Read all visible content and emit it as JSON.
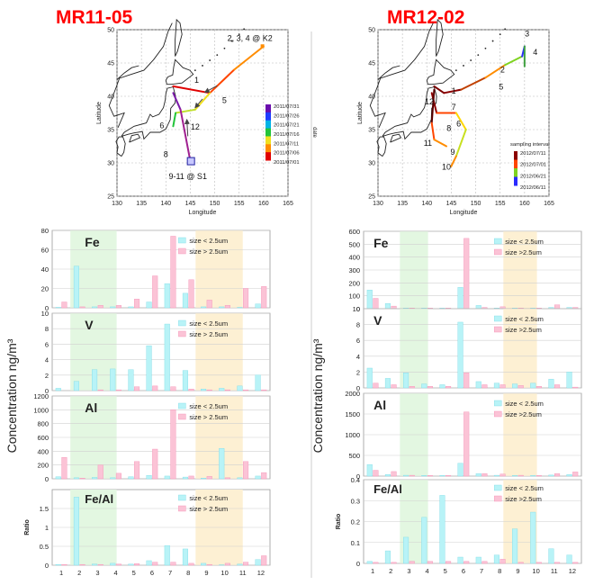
{
  "left_title": "MR11-05",
  "right_title": "MR12-02",
  "colors": {
    "fine": "#b8f3f7",
    "coarse": "#fbc3d6",
    "green_band": "#e3f7e1",
    "orange_band": "#fdf0d3",
    "fine_edge": "#7ddbe6",
    "coarse_edge": "#f58fb4"
  },
  "maps": {
    "lat_label": "Latitude",
    "lon_label": "Longitude",
    "lat_ticks": [
      25,
      30,
      35,
      40,
      45,
      50
    ],
    "lon_ticks": [
      130,
      135,
      140,
      145,
      150,
      155,
      160,
      165
    ],
    "left": {
      "legend_title": "date",
      "legend_entries": [
        "2011/07/31",
        "2011/07/26",
        "2011/07/21",
        "2011/07/16",
        "2011/07/11",
        "2011/07/06",
        "2011/07/01"
      ],
      "legend_colors": [
        "#6a0dad",
        "#1e3cff",
        "#00b3e6",
        "#22c43a",
        "#f0e020",
        "#ff8c00",
        "#e00000"
      ],
      "annotations": [
        "2, 3, 4 @ K2",
        "1",
        "5",
        "12",
        "6",
        "8",
        "9-11 @ S1"
      ]
    },
    "right": {
      "legend_title": "sampling interval",
      "legend_entries": [
        "2012/07/11",
        "2012/07/01",
        "2012/06/21",
        "2012/06/11"
      ],
      "legend_colors": [
        "#8b0000",
        "#ff4500",
        "#7fd321",
        "#2a2aff"
      ],
      "annotations": [
        "1",
        "2",
        "3",
        "4",
        "5",
        "6",
        "7",
        "8",
        "9",
        "10",
        "11",
        "12"
      ]
    }
  },
  "axis_title": "Concentration ng/m³",
  "chart_data": [
    {
      "type": "bar",
      "panel": "left",
      "element": "Fe",
      "title": "Fe",
      "ylim": [
        0,
        80
      ],
      "yticks": [
        0,
        20,
        40,
        60,
        80
      ],
      "categories": [
        "1",
        "2",
        "3",
        "4",
        "5",
        "6",
        "7",
        "8",
        "9",
        "10",
        "11",
        "12"
      ],
      "series": [
        {
          "name": "size < 2.5um",
          "values": [
            0.5,
            43,
            1,
            1,
            1,
            6,
            25,
            15,
            1,
            1,
            0.5,
            4
          ]
        },
        {
          "name": "size > 2.5um",
          "values": [
            6,
            1,
            2.5,
            2.5,
            9,
            33,
            74,
            29,
            8,
            2.5,
            20,
            22
          ]
        }
      ]
    },
    {
      "type": "bar",
      "panel": "left",
      "element": "V",
      "title": "V",
      "ylim": [
        0,
        10
      ],
      "yticks": [
        0,
        2,
        4,
        6,
        8,
        10
      ],
      "categories": [
        "1",
        "2",
        "3",
        "4",
        "5",
        "6",
        "7",
        "8",
        "9",
        "10",
        "11",
        "12"
      ],
      "series": [
        {
          "name": "size < 2.5um",
          "values": [
            0.3,
            1.2,
            2.7,
            2.8,
            2.7,
            5.8,
            8.6,
            2.6,
            0.2,
            0.3,
            0.6,
            2
          ]
        },
        {
          "name": "size > 2.5um",
          "values": [
            0,
            0,
            0.1,
            0.1,
            0.5,
            0.6,
            0.5,
            0.2,
            0.1,
            0.1,
            0.1,
            0.1
          ]
        }
      ]
    },
    {
      "type": "bar",
      "panel": "left",
      "element": "Al",
      "title": "Al",
      "ylim": [
        0,
        1200
      ],
      "yticks": [
        0,
        200,
        400,
        600,
        800,
        1000,
        1200
      ],
      "categories": [
        "1",
        "2",
        "3",
        "4",
        "5",
        "6",
        "7",
        "8",
        "9",
        "10",
        "11",
        "12"
      ],
      "series": [
        {
          "name": "size < 2.5um",
          "values": [
            30,
            15,
            20,
            15,
            30,
            50,
            40,
            25,
            10,
            440,
            15,
            40
          ]
        },
        {
          "name": "size > 2.5um",
          "values": [
            310,
            10,
            200,
            80,
            250,
            430,
            1000,
            40,
            35,
            15,
            250,
            90
          ]
        }
      ]
    },
    {
      "type": "bar",
      "panel": "left",
      "element": "Fe/Al",
      "title": "Fe/Al",
      "ylabel": "Ratio",
      "ylim": [
        0,
        2
      ],
      "yticks": [
        0,
        0.5,
        1,
        1.5
      ],
      "categories": [
        "1",
        "2",
        "3",
        "4",
        "5",
        "6",
        "7",
        "8",
        "9",
        "10",
        "11",
        "12"
      ],
      "series": [
        {
          "name": "size < 2.5um",
          "values": [
            0.02,
            1.8,
            0.03,
            0.05,
            0.03,
            0.12,
            0.52,
            0.43,
            0.05,
            0.01,
            0.03,
            0.15
          ]
        },
        {
          "name": "size > 2.5um",
          "values": [
            0.02,
            0.02,
            0.02,
            0.03,
            0.04,
            0.08,
            0.08,
            0.05,
            0.02,
            0.05,
            0.08,
            0.25
          ]
        }
      ]
    },
    {
      "type": "bar",
      "panel": "right",
      "element": "Fe",
      "title": "Fe",
      "ylim": [
        0,
        600
      ],
      "yticks": [
        0,
        100,
        200,
        300,
        400,
        500,
        600
      ],
      "categories": [
        "1",
        "2",
        "3",
        "4",
        "5",
        "6",
        "7",
        "8",
        "9",
        "10",
        "11",
        "12"
      ],
      "series": [
        {
          "name": "size < 2.5um",
          "values": [
            145,
            40,
            5,
            5,
            5,
            165,
            25,
            5,
            5,
            5,
            10,
            10
          ]
        },
        {
          "name": "size >2.5um",
          "values": [
            80,
            20,
            5,
            5,
            5,
            545,
            10,
            15,
            5,
            5,
            30,
            10
          ]
        }
      ]
    },
    {
      "type": "bar",
      "panel": "right",
      "element": "V",
      "title": "V",
      "ylim": [
        0,
        10
      ],
      "yticks": [
        0,
        2,
        4,
        6,
        8,
        10
      ],
      "categories": [
        "1",
        "2",
        "3",
        "4",
        "5",
        "6",
        "7",
        "8",
        "9",
        "10",
        "11",
        "12"
      ],
      "series": [
        {
          "name": "size < 2.5um",
          "values": [
            2.5,
            1.2,
            1.9,
            0.5,
            0.4,
            8.3,
            0.8,
            0.6,
            0.5,
            0.6,
            1.1,
            2
          ]
        },
        {
          "name": "size >2.5um",
          "values": [
            0.6,
            0.4,
            0.2,
            0.2,
            0.2,
            1.9,
            0.4,
            0.4,
            0.3,
            0.2,
            0.4,
            0.1
          ]
        }
      ]
    },
    {
      "type": "bar",
      "panel": "right",
      "element": "Al",
      "title": "Al",
      "ylim": [
        0,
        2000
      ],
      "yticks": [
        0,
        500,
        1000,
        1500,
        2000
      ],
      "categories": [
        "1",
        "2",
        "3",
        "4",
        "5",
        "6",
        "7",
        "8",
        "9",
        "10",
        "11",
        "12"
      ],
      "series": [
        {
          "name": "size < 2.5um",
          "values": [
            280,
            40,
            20,
            15,
            15,
            310,
            60,
            20,
            15,
            15,
            25,
            40
          ]
        },
        {
          "name": "size >2.5um",
          "values": [
            140,
            110,
            20,
            15,
            15,
            1550,
            60,
            50,
            20,
            15,
            60,
            100
          ]
        }
      ]
    },
    {
      "type": "bar",
      "panel": "right",
      "element": "Fe/Al",
      "title": "Fe/Al",
      "ylabel": "Ratio",
      "ylim": [
        0,
        0.4
      ],
      "yticks": [
        0,
        0.1,
        0.2,
        0.3,
        0.4
      ],
      "categories": [
        "1",
        "2",
        "3",
        "4",
        "5",
        "6",
        "7",
        "8",
        "9",
        "10",
        "11",
        "12"
      ],
      "series": [
        {
          "name": "size < 2.5um",
          "values": [
            0.01,
            0.06,
            0.125,
            0.22,
            0.325,
            0.03,
            0.03,
            0.04,
            0.165,
            0.245,
            0.07,
            0.04
          ]
        },
        {
          "name": "size >2.5um",
          "values": [
            0.005,
            0.005,
            0.01,
            0.01,
            0.01,
            0.01,
            0.01,
            0.02,
            0.005,
            0.005,
            0.005,
            0.005
          ]
        }
      ]
    }
  ]
}
